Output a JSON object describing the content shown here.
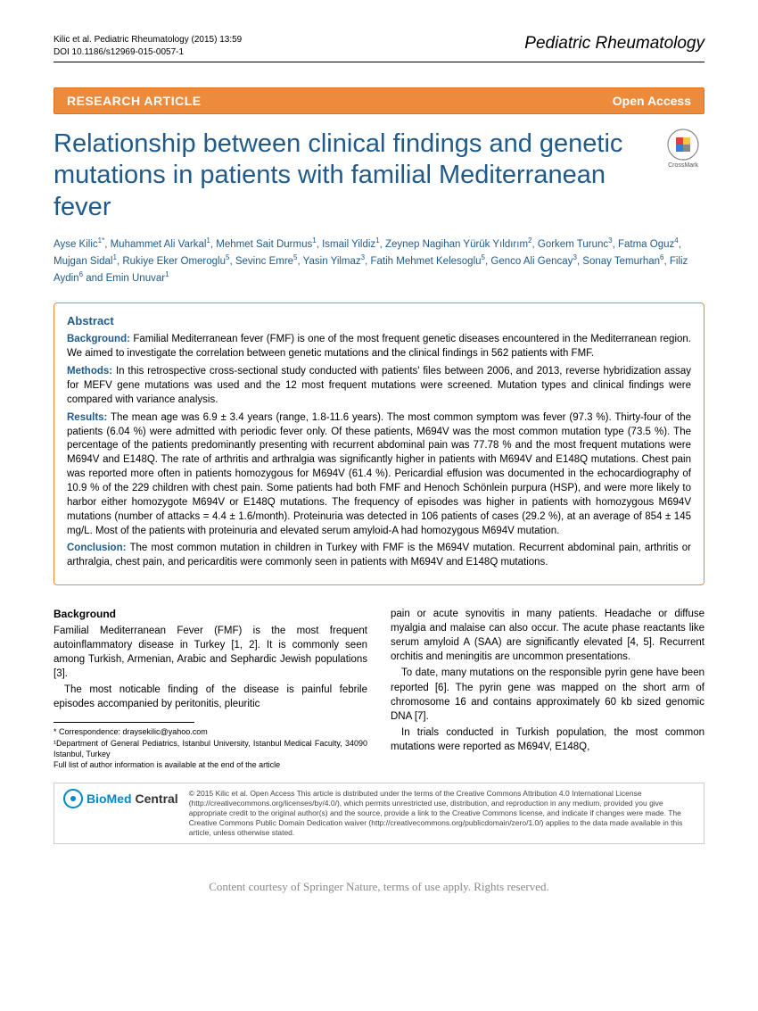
{
  "header": {
    "citation": "Kilic et al. Pediatric Rheumatology  (2015) 13:59",
    "doi": "DOI 10.1186/s12969-015-0057-1",
    "journal": "Pediatric Rheumatology"
  },
  "banner": {
    "left": "RESEARCH ARTICLE",
    "right": "Open Access"
  },
  "title": "Relationship between clinical findings and genetic mutations in patients with familial Mediterranean fever",
  "crossmark_label": "CrossMark",
  "authors_html": "Ayse Kilic<sup>1*</sup>, Muhammet Ali Varkal<sup>1</sup>, Mehmet Sait Durmus<sup>1</sup>, Ismail Yildiz<sup>1</sup>, Zeynep Nagihan Yürük Yıldırım<sup>2</sup>, Gorkem Turunc<sup>3</sup>, Fatma Oguz<sup>4</sup>, Mujgan Sidal<sup>1</sup>, Rukiye Eker Omeroglu<sup>5</sup>, Sevinc Emre<sup>5</sup>, Yasin Yilmaz<sup>3</sup>, Fatih Mehmet Kelesoglu<sup>5</sup>, Genco Ali Gencay<sup>3</sup>, Sonay Temurhan<sup>6</sup>, Filiz Aydin<sup>6</sup> and Emin Unuvar<sup>1</sup>",
  "abstract": {
    "heading": "Abstract",
    "background_label": "Background:",
    "background": "Familial Mediterranean fever (FMF) is one of the most frequent genetic diseases encountered in the Mediterranean region. We aimed to investigate the correlation between genetic mutations and the clinical findings in 562 patients with FMF.",
    "methods_label": "Methods:",
    "methods": "In this retrospective cross-sectional study conducted with patients' files between 2006, and 2013, reverse hybridization assay for MEFV gene mutations was used and the 12 most frequent mutations were screened. Mutation types and clinical findings were compared with variance analysis.",
    "results_label": "Results:",
    "results": "The mean age was 6.9 ± 3.4 years (range, 1.8-11.6 years). The most common symptom was fever (97.3 %). Thirty-four of the patients (6.04 %) were admitted with periodic fever only. Of these patients, M694V was the most common mutation type (73.5 %). The percentage of the patients predominantly presenting with recurrent abdominal pain was 77.78 % and the most frequent mutations were M694V and E148Q. The rate of arthritis and arthralgia was significantly higher in patients with M694V and E148Q mutations. Chest pain was reported more often in patients homozygous for M694V (61.4 %). Pericardial effusion was documented in the echocardiography of 10.9 % of the 229 children with chest pain. Some patients had both FMF and Henoch Schönlein purpura (HSP), and were more likely to harbor either homozygote M694V or E148Q mutations. The frequency of episodes was higher in patients with homozygous M694V mutations (number of attacks = 4.4 ± 1.6/month). Proteinuria was detected in 106 patients of cases (29.2 %), at an average of 854 ± 145 mg/L. Most of the patients with proteinuria and elevated serum amyloid-A had homozygous M694V mutation.",
    "conclusion_label": "Conclusion:",
    "conclusion": "The most common mutation in children in Turkey with FMF is the M694V mutation. Recurrent abdominal pain, arthritis or arthralgia, chest pain, and pericarditis were commonly seen in patients with M694V and E148Q mutations."
  },
  "body": {
    "background_heading": "Background",
    "left_p1": "Familial Mediterranean Fever (FMF) is the most frequent autoinflammatory disease in Turkey [1, 2]. It is commonly seen among Turkish, Armenian, Arabic and Sephardic Jewish populations [3].",
    "left_p2": "The most noticable finding of the disease is painful febrile episodes accompanied by peritonitis, pleuritic",
    "right_p1": "pain or acute synovitis in many patients. Headache or diffuse myalgia and malaise can also occur. The acute phase reactants like serum amyloid A (SAA) are significantly elevated [4, 5]. Recurrent orchitis and meningitis are uncommon presentations.",
    "right_p2": "To date, many mutations on the responsible pyrin gene have been reported [6]. The pyrin gene was mapped on the short arm of chromosome 16 and contains approximately 60 kb sized genomic DNA [7].",
    "right_p3": "In trials conducted in Turkish population, the most common mutations were reported as M694V, E148Q,"
  },
  "footnotes": {
    "correspondence": "* Correspondence: draysekilic@yahoo.com",
    "affiliation": "¹Department of General Pediatrics, Istanbul University, Istanbul Medical Faculty, 34090 Istanbul, Turkey",
    "note": "Full list of author information is available at the end of the article"
  },
  "license": {
    "text": "© 2015 Kilic et al. Open Access This article is distributed under the terms of the Creative Commons Attribution 4.0 International License (http://creativecommons.org/licenses/by/4.0/), which permits unrestricted use, distribution, and reproduction in any medium, provided you give appropriate credit to the original author(s) and the source, provide a link to the Creative Commons license, and indicate if changes were made. The Creative Commons Public Domain Dedication waiver (http://creativecommons.org/publicdomain/zero/1.0/) applies to the data made available in this article, unless otherwise stated."
  },
  "footer": "Content courtesy of Springer Nature, terms of use apply. Rights reserved.",
  "colors": {
    "accent_orange": "#ed8b3c",
    "heading_blue": "#1f5a8a",
    "bmc_blue": "#0088cc",
    "footer_gray": "#888888"
  }
}
